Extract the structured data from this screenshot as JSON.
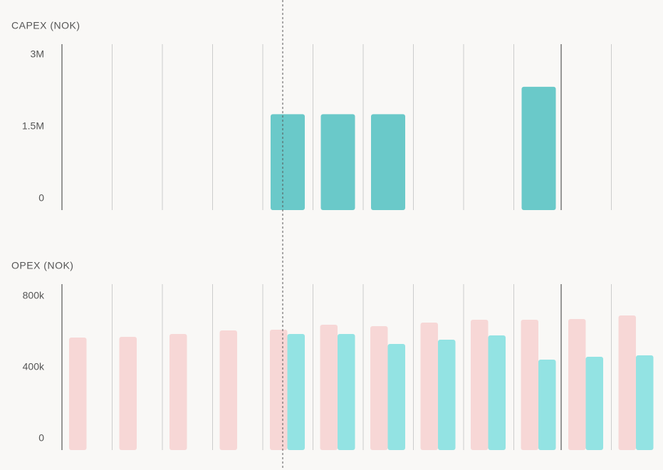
{
  "chart_data": [
    {
      "type": "bar",
      "title": "CAPEX (NOK)",
      "series": [
        {
          "color": "#6ac9c9",
          "values": [
            null,
            null,
            null,
            null,
            2000000,
            2000000,
            2000000,
            null,
            null,
            2570000,
            null,
            null
          ]
        }
      ],
      "ylim": [
        0,
        3460000
      ],
      "yticks": [
        {
          "value": 0,
          "label": "0"
        },
        {
          "value": 1500000,
          "label": "1.5M"
        },
        {
          "value": 3000000,
          "label": "3M"
        }
      ]
    },
    {
      "type": "grouped-bar",
      "title": "OPEX (NOK)",
      "series": [
        {
          "color": "#f7d7d6",
          "values": [
            632000,
            636000,
            652000,
            672000,
            676000,
            704000,
            696000,
            716000,
            732000,
            732000,
            736000,
            756000
          ]
        },
        {
          "color": "#93e3e3",
          "values": [
            null,
            null,
            null,
            null,
            652000,
            652000,
            596000,
            620000,
            644000,
            508000,
            524000,
            532000
          ]
        }
      ],
      "ylim": [
        0,
        932000
      ],
      "yticks": [
        {
          "value": 0,
          "label": "0"
        },
        {
          "value": 400000,
          "label": "400k"
        },
        {
          "value": 800000,
          "label": "800k"
        }
      ]
    }
  ]
}
